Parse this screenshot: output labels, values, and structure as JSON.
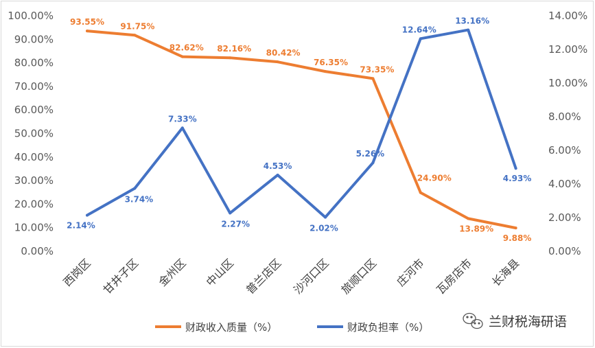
{
  "chart_data": {
    "type": "line",
    "title": "",
    "categories": [
      "西岗区",
      "甘井子区",
      "金州区",
      "中山区",
      "普兰店区",
      "沙河口区",
      "旅顺口区",
      "庄河市",
      "瓦房店市",
      "长海县"
    ],
    "series": [
      {
        "name": "财政收入质量（%）",
        "axis": "left",
        "color": "#ED7D31",
        "values": [
          93.55,
          91.75,
          82.62,
          82.16,
          80.42,
          76.35,
          73.35,
          24.9,
          13.89,
          9.88
        ],
        "labels": [
          "93.55%",
          "91.75%",
          "82.62%",
          "82.16%",
          "80.42%",
          "76.35%",
          "73.35%",
          "24.90%",
          "13.89%",
          "9.88%"
        ]
      },
      {
        "name": "财政负担率（%）",
        "axis": "right",
        "color": "#4472C4",
        "values": [
          2.14,
          3.74,
          7.33,
          2.27,
          4.53,
          2.02,
          5.26,
          12.64,
          13.16,
          4.93
        ],
        "labels": [
          "2.14%",
          "3.74%",
          "7.33%",
          "2.27%",
          "4.53%",
          "2.02%",
          "5.26%",
          "12.64%",
          "13.16%",
          "4.93%"
        ]
      }
    ],
    "y_left": {
      "ylim": [
        0,
        100
      ],
      "ticks": [
        "0.00%",
        "10.00%",
        "20.00%",
        "30.00%",
        "40.00%",
        "50.00%",
        "60.00%",
        "70.00%",
        "80.00%",
        "90.00%",
        "100.00%"
      ]
    },
    "y_right": {
      "ylim": [
        0,
        14
      ],
      "ticks": [
        "0.00%",
        "2.00%",
        "4.00%",
        "6.00%",
        "8.00%",
        "10.00%",
        "12.00%",
        "14.00%"
      ]
    },
    "grid": false,
    "legend": "bottom"
  },
  "watermark": {
    "text": "兰财税海研语",
    "icon": "wechat-icon"
  }
}
